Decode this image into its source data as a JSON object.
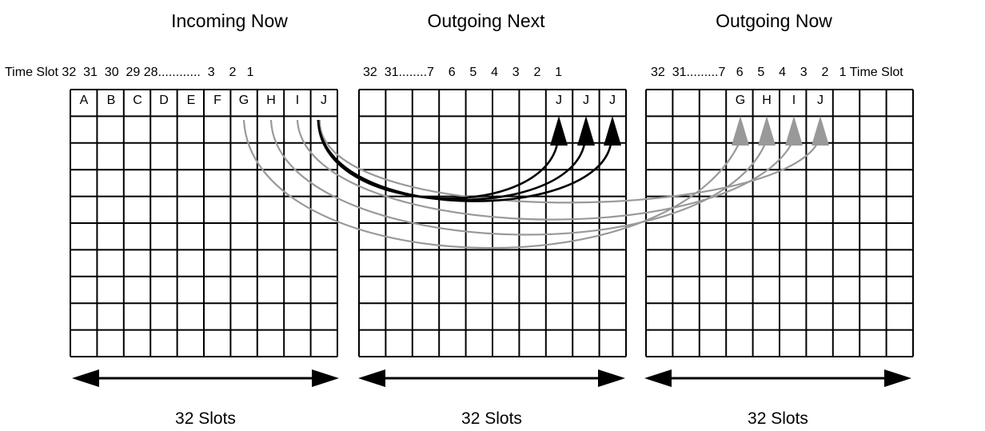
{
  "panels": [
    {
      "title": "Incoming Now",
      "header_label": "Time Slot 32  31  30  29 28............  3    2   1",
      "cell_labels": [
        "A",
        "B",
        "C",
        "D",
        "E",
        "F",
        "G",
        "H",
        "I",
        "J"
      ],
      "span_label": "32 Slots"
    },
    {
      "title": "Outgoing Next",
      "header_label": "32  31........7    6    5    4    3    2    1",
      "cell_labels": [
        "J",
        "J",
        "J"
      ],
      "span_label": "32 Slots"
    },
    {
      "title": "Outgoing Now",
      "header_label": "32  31.........7   6    5    4    3    2   1 Time Slot",
      "cell_labels": [
        "G",
        "H",
        "I",
        "J"
      ],
      "span_label": "32 Slots"
    }
  ],
  "colors": {
    "grid": "#000000",
    "arrow_next": "#000000",
    "arrow_now": "#999999"
  }
}
